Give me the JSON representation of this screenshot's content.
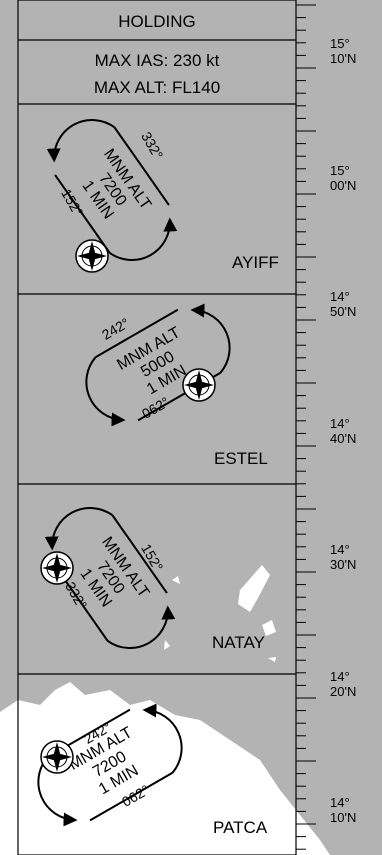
{
  "header": {
    "title": "HOLDING",
    "speed": "MAX IAS: 230 kt",
    "altitude": "MAX ALT: FL140"
  },
  "holdings": [
    {
      "fix": "AYIFF",
      "lines": [
        "MNM ALT",
        "7200",
        "1 MIN"
      ],
      "inbound": "332°",
      "outbound": "152°"
    },
    {
      "fix": "ESTEL",
      "lines": [
        "MNM ALT",
        "5000",
        "1 MIN"
      ],
      "inbound": "242°",
      "outbound": "062°"
    },
    {
      "fix": "NATAY",
      "lines": [
        "MNM ALT",
        "7200",
        "1 MIN"
      ],
      "inbound": "152°",
      "outbound": "332°"
    },
    {
      "fix": "PATCA",
      "lines": [
        "MNM ALT",
        "7200",
        "1 MIN"
      ],
      "inbound": "242°",
      "outbound": "062°"
    }
  ],
  "latitudes": [
    [
      "15°",
      "10'N"
    ],
    [
      "15°",
      "00'N"
    ],
    [
      "14°",
      "50'N"
    ],
    [
      "14°",
      "40'N"
    ],
    [
      "14°",
      "30'N"
    ],
    [
      "14°",
      "20'N"
    ],
    [
      "14°",
      "10'N"
    ]
  ]
}
